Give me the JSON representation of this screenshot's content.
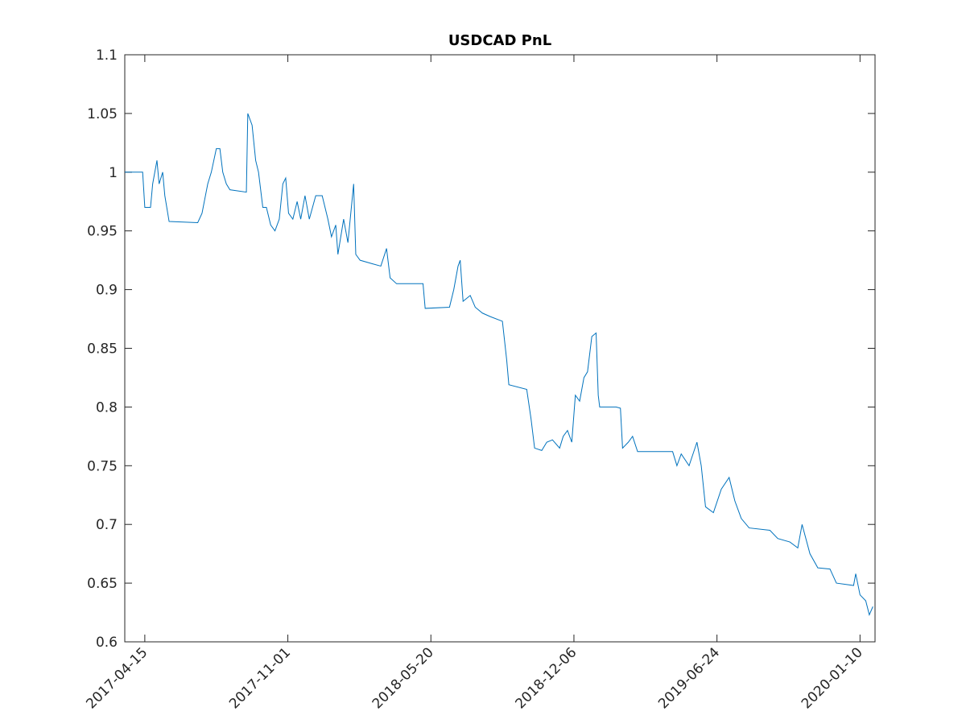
{
  "chart_data": {
    "type": "line",
    "title": "USDCAD PnL",
    "color": "#0072BD",
    "x": [
      "2017-03-18",
      "2017-04-12",
      "2017-04-15",
      "2017-04-23",
      "2017-04-26",
      "2017-05-02",
      "2017-05-05",
      "2017-05-10",
      "2017-05-13",
      "2017-05-19",
      "2017-06-28",
      "2017-07-04",
      "2017-07-12",
      "2017-07-17",
      "2017-07-24",
      "2017-07-29",
      "2017-08-02",
      "2017-08-07",
      "2017-08-12",
      "2017-09-04",
      "2017-09-06",
      "2017-09-12",
      "2017-09-17",
      "2017-09-21",
      "2017-09-27",
      "2017-10-02",
      "2017-10-08",
      "2017-10-14",
      "2017-10-20",
      "2017-10-25",
      "2017-10-29",
      "2017-11-02",
      "2017-11-08",
      "2017-11-14",
      "2017-11-19",
      "2017-11-25",
      "2017-12-01",
      "2017-12-10",
      "2017-12-19",
      "2017-12-27",
      "2018-01-01",
      "2018-01-07",
      "2018-01-10",
      "2018-01-18",
      "2018-01-24",
      "2018-02-01",
      "2018-02-04",
      "2018-02-10",
      "2018-02-27",
      "2018-03-11",
      "2018-03-19",
      "2018-03-24",
      "2018-04-02",
      "2018-05-09",
      "2018-05-12",
      "2018-06-15",
      "2018-06-21",
      "2018-06-27",
      "2018-06-30",
      "2018-07-04",
      "2018-07-14",
      "2018-07-21",
      "2018-07-31",
      "2018-08-11",
      "2018-08-28",
      "2018-09-03",
      "2018-09-06",
      "2018-10-01",
      "2018-10-07",
      "2018-10-12",
      "2018-10-22",
      "2018-10-29",
      "2018-11-06",
      "2018-11-16",
      "2018-11-21",
      "2018-11-27",
      "2018-12-03",
      "2018-12-08",
      "2018-12-14",
      "2018-12-20",
      "2018-12-25",
      "2018-12-31",
      "2019-01-06",
      "2019-01-09",
      "2019-01-11",
      "2019-02-03",
      "2019-02-09",
      "2019-02-12",
      "2019-02-20",
      "2019-02-26",
      "2019-03-05",
      "2019-04-23",
      "2019-04-29",
      "2019-05-05",
      "2019-05-16",
      "2019-05-27",
      "2019-06-02",
      "2019-06-08",
      "2019-06-19",
      "2019-06-30",
      "2019-07-11",
      "2019-07-19",
      "2019-07-28",
      "2019-08-08",
      "2019-09-06",
      "2019-09-17",
      "2019-10-04",
      "2019-10-15",
      "2019-10-21",
      "2019-11-01",
      "2019-11-12",
      "2019-11-29",
      "2019-12-08",
      "2020-01-01",
      "2020-01-04",
      "2020-01-10",
      "2020-01-18",
      "2020-01-23",
      "2020-01-28"
    ],
    "values": [
      1.0,
      1.0,
      0.97,
      0.97,
      0.99,
      1.01,
      0.99,
      1.0,
      0.98,
      0.958,
      0.957,
      0.965,
      0.99,
      1.0,
      1.02,
      1.02,
      1.0,
      0.99,
      0.985,
      0.983,
      1.05,
      1.04,
      1.01,
      1.0,
      0.97,
      0.97,
      0.955,
      0.95,
      0.96,
      0.99,
      0.995,
      0.965,
      0.96,
      0.975,
      0.96,
      0.98,
      0.96,
      0.98,
      0.98,
      0.96,
      0.945,
      0.955,
      0.93,
      0.96,
      0.94,
      0.99,
      0.93,
      0.925,
      0.922,
      0.92,
      0.935,
      0.91,
      0.905,
      0.905,
      0.884,
      0.885,
      0.9,
      0.92,
      0.925,
      0.89,
      0.895,
      0.885,
      0.88,
      0.877,
      0.873,
      0.84,
      0.819,
      0.815,
      0.79,
      0.765,
      0.763,
      0.77,
      0.772,
      0.765,
      0.775,
      0.78,
      0.77,
      0.81,
      0.805,
      0.825,
      0.83,
      0.86,
      0.863,
      0.81,
      0.8,
      0.8,
      0.799,
      0.765,
      0.77,
      0.775,
      0.762,
      0.762,
      0.75,
      0.76,
      0.75,
      0.77,
      0.75,
      0.715,
      0.71,
      0.73,
      0.74,
      0.72,
      0.705,
      0.697,
      0.695,
      0.688,
      0.685,
      0.68,
      0.7,
      0.675,
      0.663,
      0.662,
      0.65,
      0.648,
      0.658,
      0.64,
      0.635,
      0.623,
      0.63
    ],
    "xlim": [
      "2017-03-18",
      "2020-01-31"
    ],
    "xticks": [
      "2017-04-15",
      "2017-11-01",
      "2018-05-20",
      "2018-12-06",
      "2019-06-24",
      "2020-01-10"
    ],
    "ylim": [
      0.6,
      1.1
    ],
    "yticks": [
      0.6,
      0.65,
      0.7,
      0.75,
      0.8,
      0.85,
      0.9,
      0.95,
      1,
      1.05,
      1.1
    ]
  }
}
